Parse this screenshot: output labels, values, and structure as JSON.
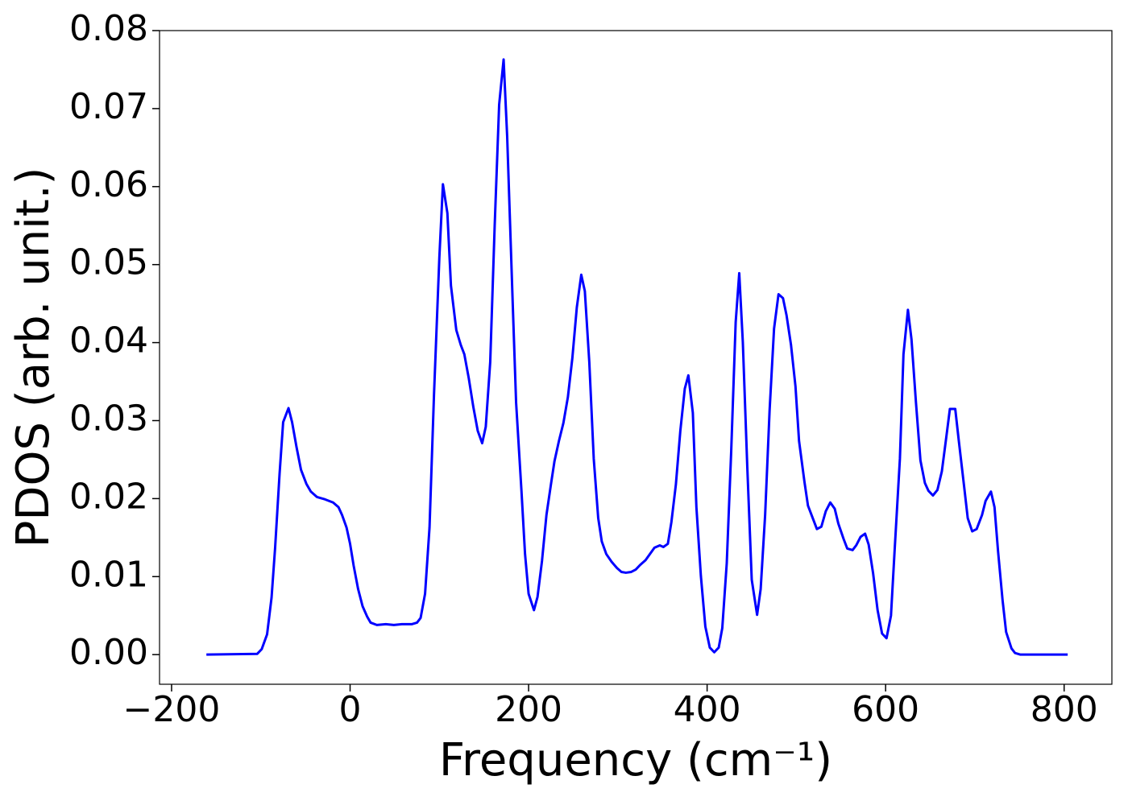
{
  "chart_data": {
    "type": "line",
    "xlabel": "Frequency (cm⁻¹)",
    "ylabel": "PDOS (arb. unit.)",
    "color": "#0000ff",
    "xlim": [
      -213.5,
      853.5
    ],
    "ylim": [
      -0.0038,
      0.08
    ],
    "xticks": [
      {
        "value": -200,
        "label": "−200"
      },
      0,
      200,
      400,
      600,
      800
    ],
    "yticks": [
      {
        "value": 0,
        "label": "0.00"
      },
      0.01,
      0.02,
      0.03,
      0.04,
      0.05,
      0.06,
      0.07,
      0.08
    ],
    "x": [
      -161,
      -104,
      -99,
      -93,
      -88,
      -84,
      -79,
      -75,
      -69,
      -65,
      -60,
      -55,
      -49,
      -44,
      -37,
      -28,
      -19,
      -13,
      -9,
      -4,
      0,
      4,
      9,
      14,
      19,
      23,
      30,
      40,
      49,
      58,
      69,
      75,
      79,
      84,
      89,
      94,
      100,
      104,
      109,
      113,
      119,
      124,
      128,
      133,
      138,
      143,
      148,
      152,
      157,
      162,
      167,
      172,
      176,
      182,
      186,
      192,
      196,
      200,
      206,
      210,
      215,
      220,
      225,
      229,
      234,
      239,
      244,
      249,
      254,
      259,
      263,
      268,
      273,
      278,
      282,
      287,
      293,
      299,
      304,
      309,
      315,
      320,
      325,
      331,
      336,
      341,
      347,
      351,
      356,
      360,
      365,
      370,
      375,
      379,
      384,
      388,
      393,
      398,
      403,
      408,
      413,
      417,
      422,
      427,
      432,
      436,
      440,
      445,
      450,
      456,
      460,
      465,
      470,
      475,
      480,
      485,
      489,
      494,
      499,
      503,
      509,
      513,
      519,
      523,
      528,
      533,
      538,
      543,
      547,
      553,
      557,
      563,
      567,
      572,
      577,
      581,
      586,
      591,
      596,
      601,
      606,
      610,
      616,
      620,
      625,
      629,
      634,
      639,
      644,
      648,
      653,
      658,
      663,
      668,
      672,
      678,
      682,
      688,
      692,
      697,
      702,
      708,
      712,
      718,
      722,
      726,
      731,
      735,
      741,
      745,
      751,
      804
    ],
    "values": [
      0,
      0.0001,
      0.0007,
      0.0026,
      0.0073,
      0.0137,
      0.0232,
      0.0298,
      0.0316,
      0.0298,
      0.0266,
      0.0237,
      0.0219,
      0.0209,
      0.0202,
      0.0199,
      0.0195,
      0.0189,
      0.0179,
      0.0163,
      0.0142,
      0.0114,
      0.0084,
      0.0062,
      0.0049,
      0.0041,
      0.0038,
      0.0039,
      0.0038,
      0.0039,
      0.0039,
      0.0041,
      0.0047,
      0.0078,
      0.0163,
      0.0333,
      0.0509,
      0.0603,
      0.0566,
      0.0473,
      0.0416,
      0.0397,
      0.0385,
      0.0354,
      0.0318,
      0.0287,
      0.0271,
      0.0292,
      0.0375,
      0.055,
      0.0705,
      0.0763,
      0.0664,
      0.0457,
      0.0323,
      0.021,
      0.0129,
      0.0078,
      0.0057,
      0.0074,
      0.012,
      0.0179,
      0.0218,
      0.0248,
      0.0274,
      0.0297,
      0.033,
      0.038,
      0.0445,
      0.0487,
      0.0466,
      0.0375,
      0.0251,
      0.0175,
      0.0145,
      0.0129,
      0.0119,
      0.0111,
      0.0106,
      0.0105,
      0.0106,
      0.0109,
      0.0115,
      0.0121,
      0.0129,
      0.0137,
      0.014,
      0.0138,
      0.0142,
      0.017,
      0.0218,
      0.0287,
      0.0341,
      0.0358,
      0.031,
      0.0189,
      0.0101,
      0.0036,
      0.0009,
      0.0003,
      0.0009,
      0.0034,
      0.0117,
      0.0261,
      0.0426,
      0.0489,
      0.0401,
      0.0241,
      0.0096,
      0.0051,
      0.0084,
      0.0179,
      0.0313,
      0.0418,
      0.0462,
      0.0457,
      0.0435,
      0.0397,
      0.0344,
      0.0274,
      0.0222,
      0.0191,
      0.0173,
      0.0161,
      0.0164,
      0.0184,
      0.0195,
      0.0187,
      0.0168,
      0.0148,
      0.0136,
      0.0134,
      0.014,
      0.0151,
      0.0155,
      0.0141,
      0.0104,
      0.0057,
      0.0027,
      0.0021,
      0.005,
      0.0132,
      0.0251,
      0.0385,
      0.0442,
      0.0404,
      0.0323,
      0.0249,
      0.022,
      0.021,
      0.0204,
      0.0211,
      0.0235,
      0.0279,
      0.0315,
      0.0315,
      0.0274,
      0.0215,
      0.0175,
      0.0158,
      0.0161,
      0.0179,
      0.0197,
      0.0209,
      0.0189,
      0.0132,
      0.007,
      0.0029,
      0.0008,
      0.0002,
      0,
      0
    ]
  }
}
